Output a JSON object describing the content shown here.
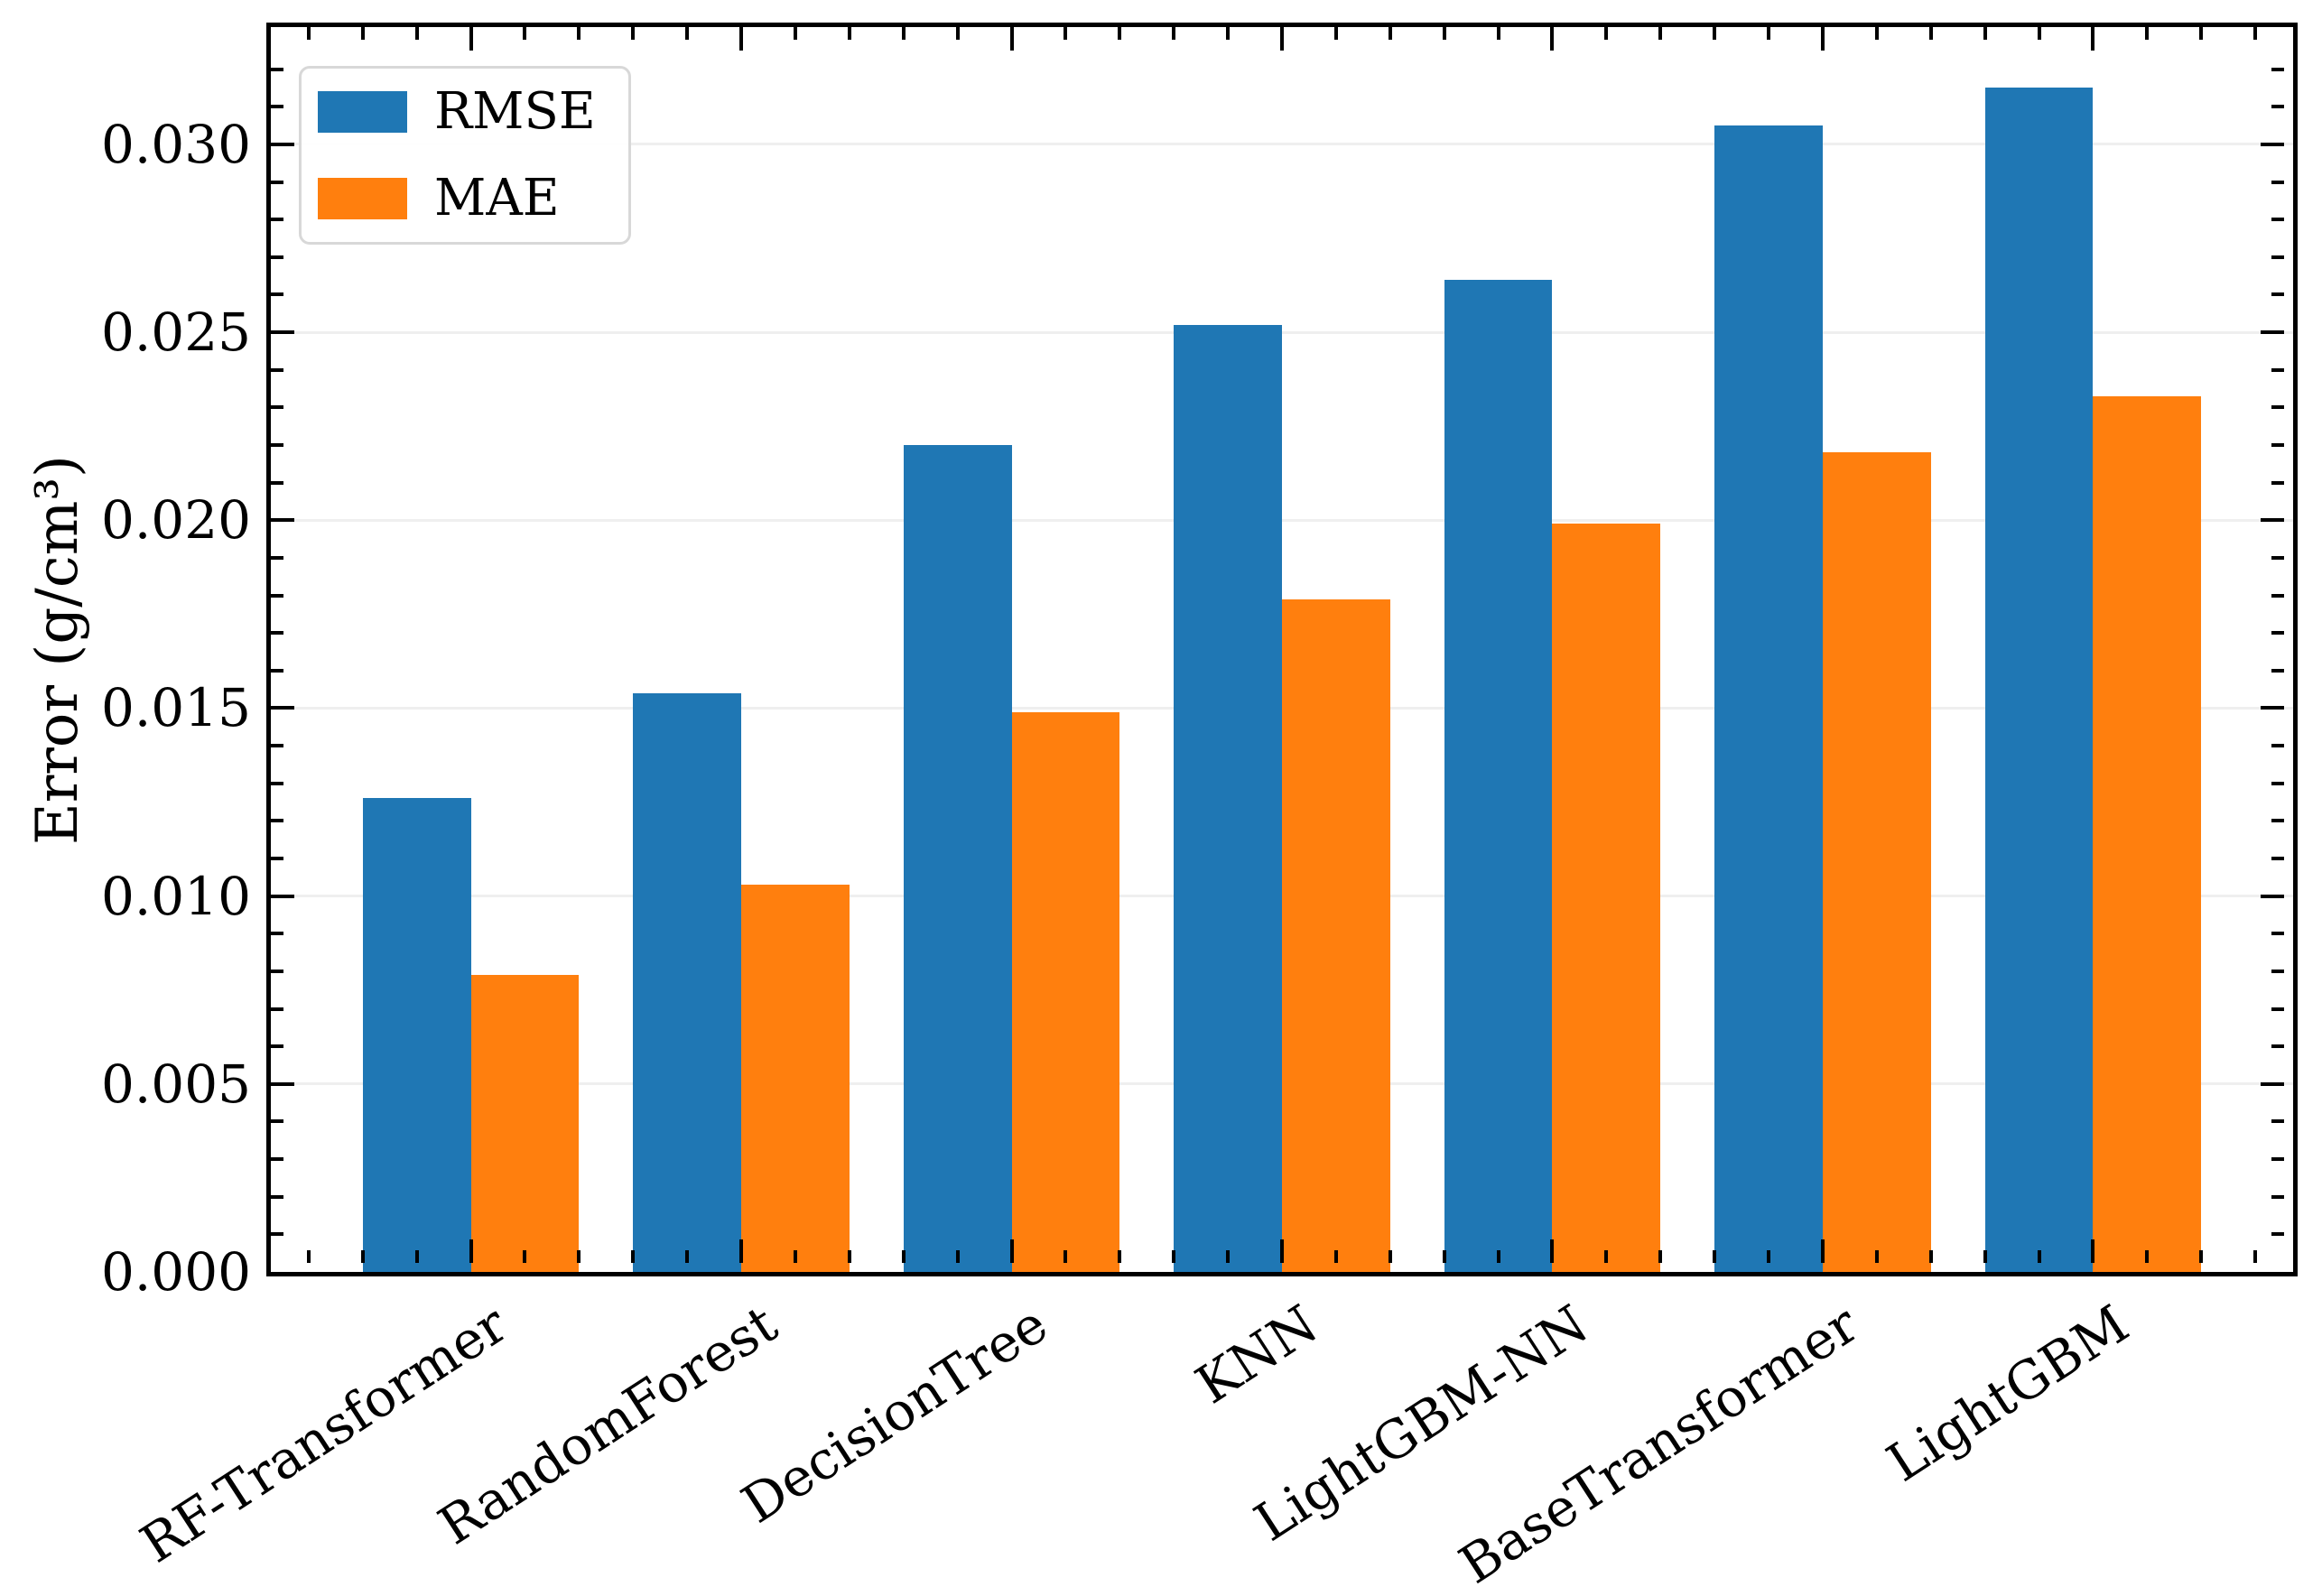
{
  "chart_data": {
    "type": "bar",
    "title": "",
    "categories": [
      "RF-Transformer",
      "RandomForest",
      "DecisionTree",
      "KNN",
      "LightGBM-NN",
      "BaseTransformer",
      "LightGBM"
    ],
    "series": [
      {
        "name": "RMSE",
        "color": "#1f77b4",
        "values": [
          0.0126,
          0.0154,
          0.022,
          0.0252,
          0.0264,
          0.0305,
          0.0315
        ]
      },
      {
        "name": "MAE",
        "color": "#ff7f0e",
        "values": [
          0.0079,
          0.0103,
          0.0149,
          0.0179,
          0.0199,
          0.0218,
          0.0233
        ]
      }
    ],
    "xlabel": "",
    "ylabel": "Error (g/cm³)",
    "ylim": [
      0,
      0.03312
    ],
    "ytick_values": [
      0.0,
      0.005,
      0.01,
      0.015,
      0.02,
      0.025,
      0.03
    ],
    "ytick_labels": [
      "0.000",
      "0.005",
      "0.010",
      "0.015",
      "0.020",
      "0.025",
      "0.030"
    ],
    "y_minor_step": 0.001,
    "x_minor_step_units": 0.2,
    "grid": "horizontal-major-on",
    "grid_color": "#efefef",
    "tick_style": "inward-all-sides",
    "legend_position": "upper-left",
    "spine_color": "#000000",
    "background_color": "#ffffff"
  }
}
